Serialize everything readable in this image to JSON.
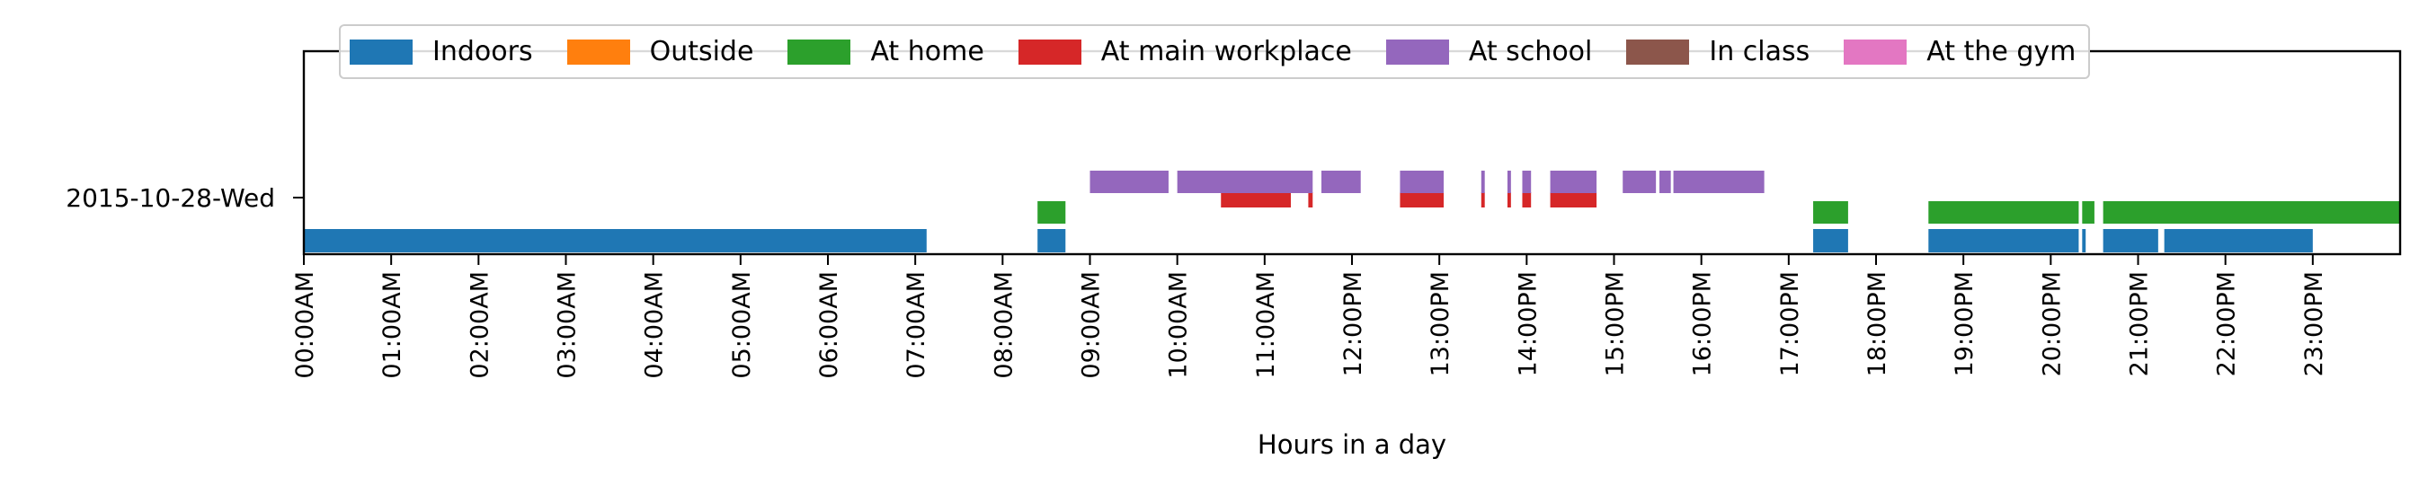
{
  "chart_data": {
    "type": "timeline",
    "title": "",
    "xlabel": "Hours in a day",
    "ylabel": "",
    "xlim": [
      0,
      24
    ],
    "row_label": "2015-10-28-Wed",
    "x_ticks": [
      "00:00AM",
      "01:00AM",
      "02:00AM",
      "03:00AM",
      "04:00AM",
      "05:00AM",
      "06:00AM",
      "07:00AM",
      "08:00AM",
      "09:00AM",
      "10:00AM",
      "11:00AM",
      "12:00PM",
      "13:00PM",
      "14:00PM",
      "15:00PM",
      "16:00PM",
      "17:00PM",
      "18:00PM",
      "19:00PM",
      "20:00PM",
      "21:00PM",
      "22:00PM",
      "23:00PM"
    ],
    "legend_position": "top-center",
    "series": [
      {
        "name": "Indoors",
        "color": "#1f77b4",
        "lane": 0,
        "intervals": [
          [
            0.0,
            7.13
          ],
          [
            8.4,
            8.72
          ],
          [
            17.28,
            17.68
          ],
          [
            18.6,
            20.32
          ],
          [
            20.36,
            20.4
          ],
          [
            20.6,
            21.23
          ],
          [
            21.3,
            23.0
          ]
        ]
      },
      {
        "name": "Outside",
        "color": "#ff7f0e",
        "lane": 1,
        "intervals": []
      },
      {
        "name": "At home",
        "color": "#2ca02c",
        "lane": 1,
        "intervals": [
          [
            8.4,
            8.72
          ],
          [
            17.28,
            17.68
          ],
          [
            18.6,
            20.32
          ],
          [
            20.36,
            20.5
          ],
          [
            20.6,
            24.0
          ]
        ]
      },
      {
        "name": "At main workplace",
        "color": "#d62728",
        "lane": 2,
        "intervals": [
          [
            10.5,
            11.3
          ],
          [
            11.5,
            11.55
          ],
          [
            12.55,
            13.05
          ],
          [
            13.48,
            13.52
          ],
          [
            13.78,
            13.82
          ],
          [
            13.95,
            14.05
          ],
          [
            14.27,
            14.8
          ]
        ]
      },
      {
        "name": "At school",
        "color": "#9467bd",
        "lane": 3,
        "intervals": [
          [
            9.0,
            9.9
          ],
          [
            10.0,
            11.55
          ],
          [
            11.65,
            12.1
          ],
          [
            12.55,
            13.05
          ],
          [
            13.48,
            13.52
          ],
          [
            13.78,
            13.82
          ],
          [
            13.95,
            14.05
          ],
          [
            14.27,
            14.8
          ],
          [
            15.1,
            15.48
          ],
          [
            15.52,
            15.65
          ],
          [
            15.68,
            16.72
          ]
        ]
      },
      {
        "name": "In class",
        "color": "#8c564b",
        "lane": 3,
        "intervals": []
      },
      {
        "name": "At the gym",
        "color": "#e377c2",
        "lane": 3,
        "intervals": []
      }
    ]
  }
}
